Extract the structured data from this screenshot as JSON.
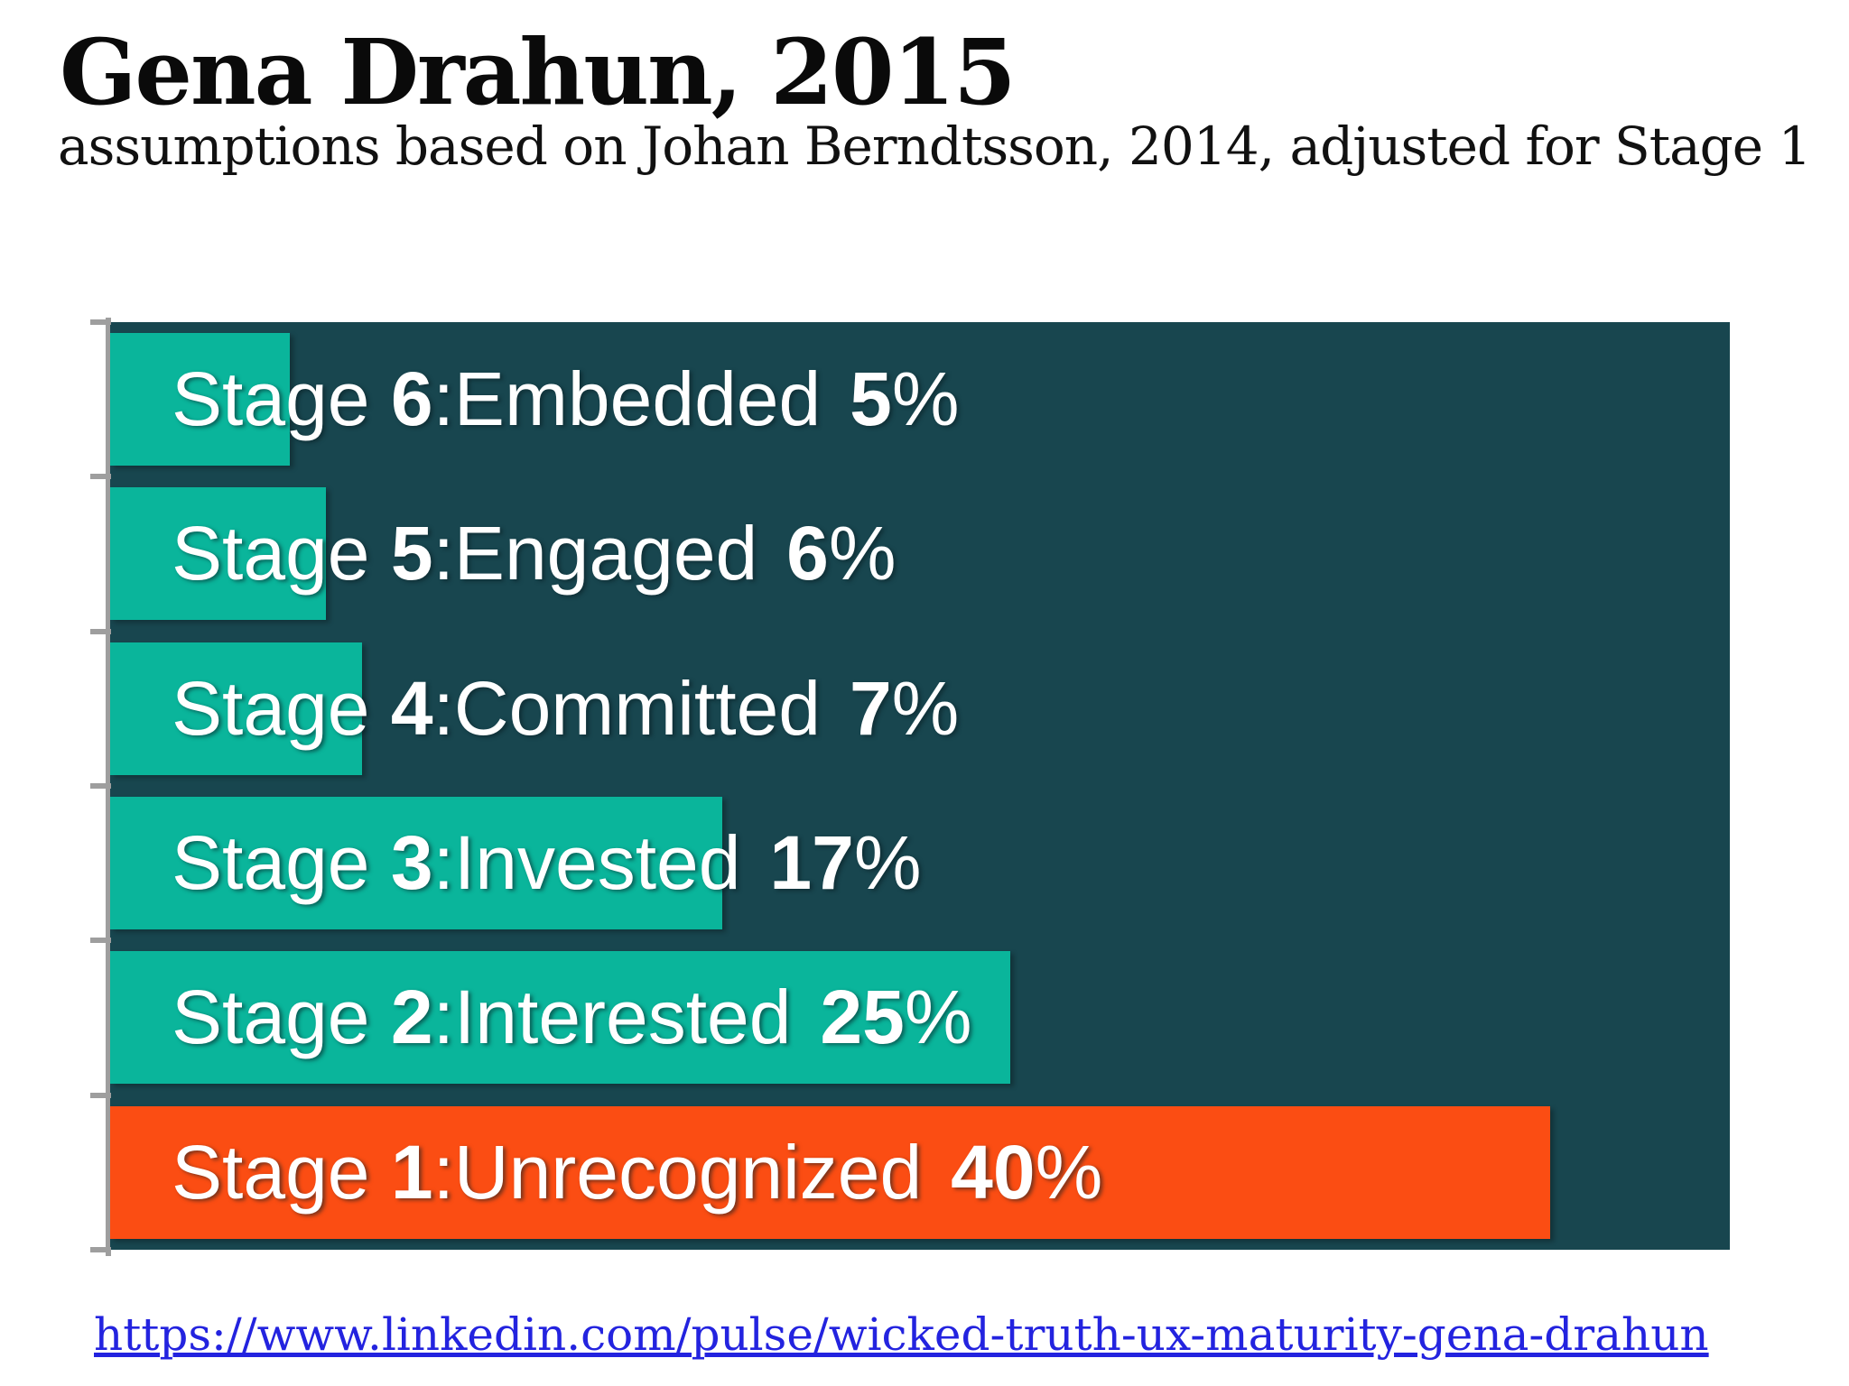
{
  "title": "Gena Drahun, 2015",
  "subtitle": "assumptions based on Johan Berndtsson, 2014, adjusted for Stage 1",
  "link": {
    "text": "https://www.linkedin.com/pulse/wicked-truth-ux-maturity-gena-drahun"
  },
  "colors": {
    "plot_background": "#18464F",
    "bar_teal": "#0AB59B",
    "bar_orange": "#FB4D13",
    "axis_gray": "#9E9E9E",
    "link_blue": "#2323DF",
    "label_white": "#FFFFFF",
    "title_black": "#0A0A0A"
  },
  "chart_data": {
    "type": "bar",
    "orientation": "horizontal",
    "title": "Gena Drahun, 2015",
    "subtitle": "assumptions based on Johan Berndtsson, 2014, adjusted for Stage 1",
    "categories": [
      "Stage 6: Embedded",
      "Stage 5: Engaged",
      "Stage 4: Committed",
      "Stage 3: Invested",
      "Stage 2: Interested",
      "Stage 1: Unrecognized"
    ],
    "values": [
      5,
      6,
      7,
      17,
      25,
      40
    ],
    "value_unit": "%",
    "axis_max": 45,
    "grid": false,
    "legend": false,
    "pct_suffix": "%",
    "bars": [
      {
        "stage_word": "Stage",
        "stage_num": "6",
        "sep": ": ",
        "name": "Embedded",
        "pct": 5,
        "pct_label": "5",
        "color": "#0AB59B"
      },
      {
        "stage_word": "Stage",
        "stage_num": "5",
        "sep": ": ",
        "name": "Engaged",
        "pct": 6,
        "pct_label": "6",
        "color": "#0AB59B"
      },
      {
        "stage_word": "Stage",
        "stage_num": "4",
        "sep": ": ",
        "name": "Committed",
        "pct": 7,
        "pct_label": "7",
        "color": "#0AB59B"
      },
      {
        "stage_word": "Stage",
        "stage_num": "3",
        "sep": ": ",
        "name": "Invested",
        "pct": 17,
        "pct_label": "17",
        "color": "#0AB59B"
      },
      {
        "stage_word": "Stage",
        "stage_num": "2",
        "sep": ": ",
        "name": "Interested",
        "pct": 25,
        "pct_label": "25",
        "color": "#0AB59B"
      },
      {
        "stage_word": "Stage",
        "stage_num": "1",
        "sep": ": ",
        "name": "Unrecognized",
        "pct": 40,
        "pct_label": "40",
        "color": "#FB4D13"
      }
    ]
  }
}
